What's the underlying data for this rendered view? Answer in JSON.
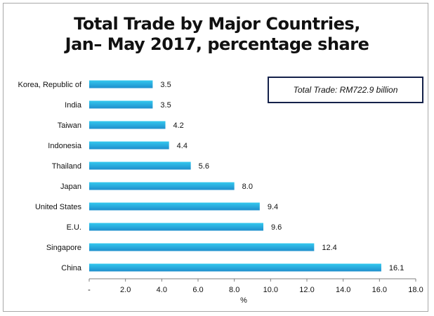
{
  "chart_data": {
    "type": "bar",
    "orientation": "horizontal",
    "title_lines": [
      "Total Trade by Major Countries,",
      "Jan– May 2017, percentage share"
    ],
    "annotation": "Total Trade: RM722.9 billion",
    "xlabel": "%",
    "ylabel": "",
    "categories": [
      "Korea, Republic of",
      "India",
      "Taiwan",
      "Indonesia",
      "Thailand",
      "Japan",
      "United States",
      "E.U.",
      "Singapore",
      "China"
    ],
    "value_labels": [
      "3.5",
      "3.5",
      "4.2",
      "4.4",
      "5.6",
      "8.0",
      "9.4",
      "9.6",
      "12.4",
      "16.1"
    ],
    "values": [
      3.5,
      3.5,
      4.2,
      4.4,
      5.6,
      8.0,
      9.4,
      9.6,
      12.4,
      16.1
    ],
    "xlim": [
      0,
      18
    ],
    "xticks": [
      "-",
      "2.0",
      "4.0",
      "6.0",
      "8.0",
      "10.0",
      "12.0",
      "14.0",
      "16.0",
      "18.0"
    ],
    "grid": false,
    "legend": "none",
    "colors": {
      "bar_top": "#33c8ee",
      "bar_bottom": "#1f8fcd",
      "annotation_border": "#14214a"
    }
  }
}
